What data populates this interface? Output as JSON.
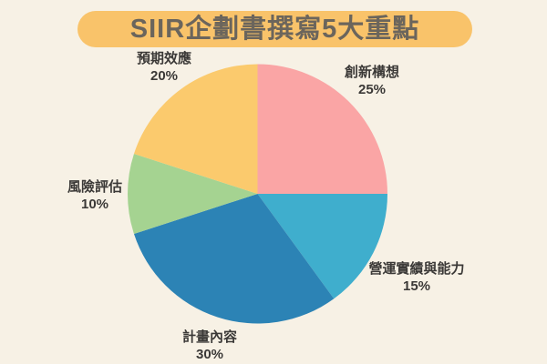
{
  "page": {
    "background_color": "#F7F1E5"
  },
  "header": {
    "title": "SIIR企劃書撰寫5大重點",
    "banner_color": "#F9C36A",
    "title_text_color": "#6B655C"
  },
  "chart_data": {
    "type": "pie",
    "title": "SIIR企劃書撰寫5大重點",
    "start_angle_deg": 0,
    "direction": "clockwise",
    "label_text_color": "#3B3937",
    "slices": [
      {
        "label": "創新構想",
        "value": 25,
        "pct_label": "25%",
        "color": "#FAA5A5"
      },
      {
        "label": "營運實績與能力",
        "value": 15,
        "pct_label": "15%",
        "color": "#3FAECD"
      },
      {
        "label": "計畫內容",
        "value": 30,
        "pct_label": "30%",
        "color": "#2C83B5"
      },
      {
        "label": "風險評估",
        "value": 10,
        "pct_label": "10%",
        "color": "#A5D391"
      },
      {
        "label": "預期效應",
        "value": 20,
        "pct_label": "20%",
        "color": "#FBCA6D"
      }
    ]
  }
}
